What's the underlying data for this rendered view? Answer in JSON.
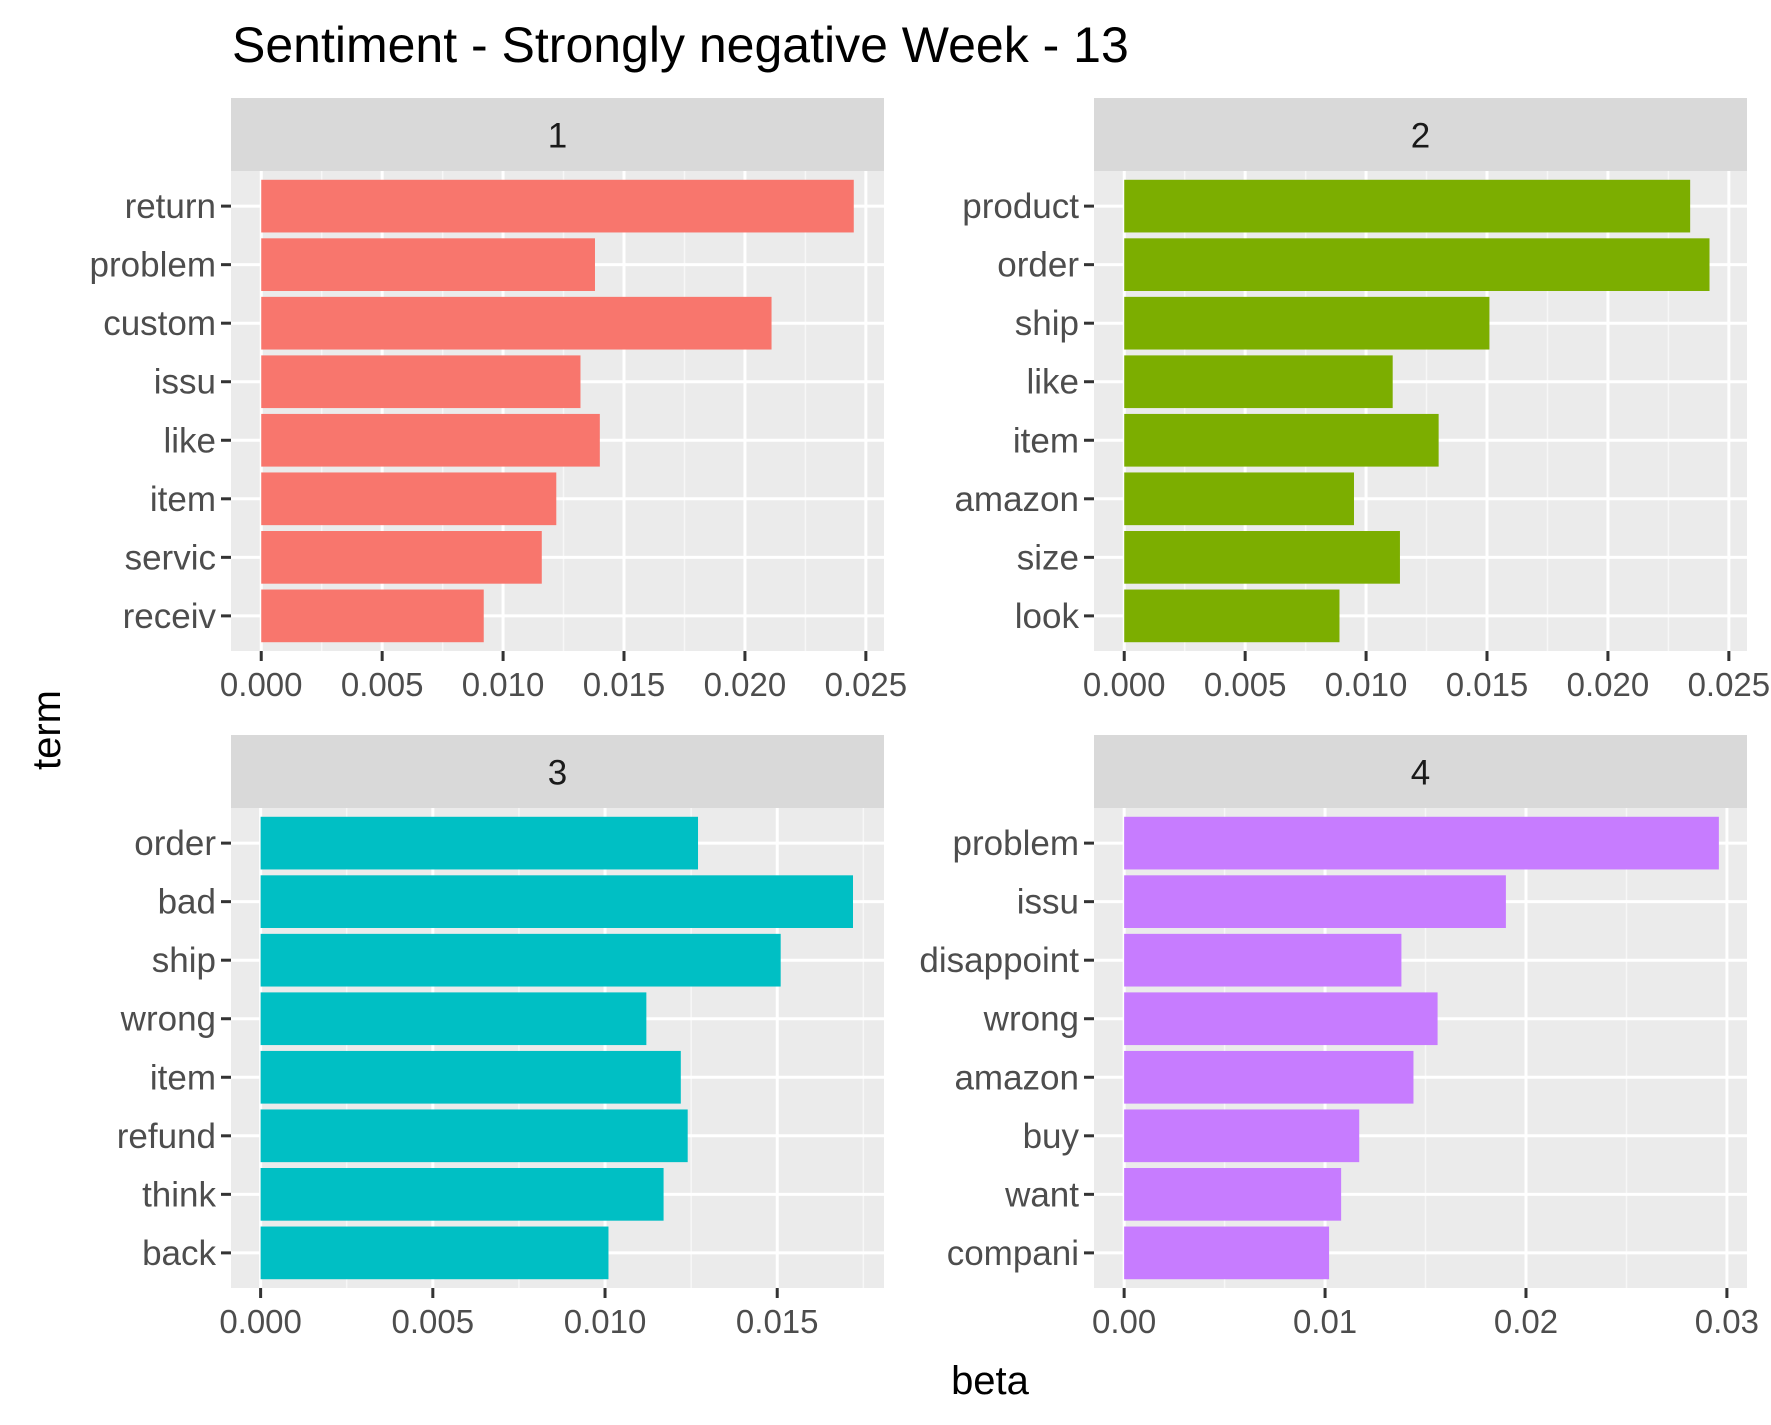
{
  "chart_data": {
    "type": "bar",
    "title": "Sentiment - Strongly negative Week - 13",
    "xlabel": "beta",
    "ylabel": "term",
    "grid": true,
    "legend": "none",
    "colors": [
      "#F8766D",
      "#7CAE00",
      "#00BFC4",
      "#C77CFF"
    ],
    "panels": [
      {
        "strip": "1",
        "categories": [
          "return",
          "problem",
          "custom",
          "issu",
          "like",
          "item",
          "servic",
          "receiv"
        ],
        "values": [
          0.0245,
          0.0138,
          0.0211,
          0.0132,
          0.014,
          0.0122,
          0.0116,
          0.0092
        ],
        "xlim": [
          -0.00125,
          0.02575
        ],
        "xticks": [
          0,
          0.005,
          0.01,
          0.015,
          0.02,
          0.025
        ],
        "xtick_labels": [
          "0.000",
          "0.005",
          "0.010",
          "0.015",
          "0.020",
          "0.025"
        ],
        "color": "#F8766D"
      },
      {
        "strip": "2",
        "categories": [
          "product",
          "order",
          "ship",
          "like",
          "item",
          "amazon",
          "size",
          "look"
        ],
        "values": [
          0.0234,
          0.0242,
          0.0151,
          0.0111,
          0.013,
          0.0095,
          0.0114,
          0.0089
        ],
        "xlim": [
          -0.00125,
          0.02575
        ],
        "xticks": [
          0,
          0.005,
          0.01,
          0.015,
          0.02,
          0.025
        ],
        "xtick_labels": [
          "0.000",
          "0.005",
          "0.010",
          "0.015",
          "0.020",
          "0.025"
        ],
        "color": "#7CAE00"
      },
      {
        "strip": "3",
        "categories": [
          "order",
          "bad",
          "ship",
          "wrong",
          "item",
          "refund",
          "think",
          "back"
        ],
        "values": [
          0.0127,
          0.0172,
          0.0151,
          0.0112,
          0.0122,
          0.0124,
          0.0117,
          0.0101
        ],
        "xlim": [
          -0.00086,
          0.0181
        ],
        "xticks": [
          0,
          0.005,
          0.01,
          0.015
        ],
        "xtick_labels": [
          "0.000",
          "0.005",
          "0.010",
          "0.015"
        ],
        "color": "#00BFC4"
      },
      {
        "strip": "4",
        "categories": [
          "problem",
          "issu",
          "disappoint",
          "wrong",
          "amazon",
          "buy",
          "want",
          "compani"
        ],
        "values": [
          0.0296,
          0.019,
          0.0138,
          0.0156,
          0.0144,
          0.0117,
          0.0108,
          0.0102
        ],
        "xlim": [
          -0.0015,
          0.031
        ],
        "xticks": [
          0,
          0.01,
          0.02,
          0.03
        ],
        "xtick_labels": [
          "0.00",
          "0.01",
          "0.02",
          "0.03"
        ],
        "color": "#C77CFF"
      }
    ]
  }
}
